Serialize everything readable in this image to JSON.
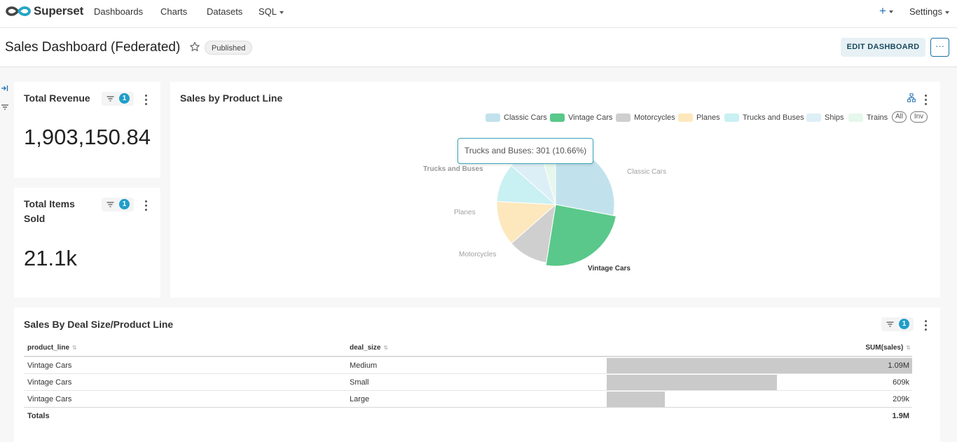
{
  "nav": {
    "brand": "Superset",
    "items": [
      "Dashboards",
      "Charts",
      "Datasets",
      "SQL"
    ],
    "plus_icon": "plus-icon",
    "settings": "Settings"
  },
  "header": {
    "title": "Sales Dashboard (Federated)",
    "status": "Published",
    "edit_label": "EDIT DASHBOARD",
    "more_label": "···"
  },
  "revenue_card": {
    "title": "Total Revenue",
    "filter_count": "1",
    "value": "1,903,150.84"
  },
  "items_card": {
    "title_line1": "Total Items",
    "title_line2": "Sold",
    "filter_count": "1",
    "value": "21.1k"
  },
  "pie_card": {
    "title": "Sales by Product Line",
    "legend_all": "All",
    "legend_inv": "Inv",
    "tooltip": "Trucks and Buses: 301 (10.66%)",
    "labels": {
      "classic": "Classic Cars",
      "vintage": "Vintage Cars",
      "motorcycles": "Motorcycles",
      "planes": "Planes",
      "trucks": "Trucks and Buses"
    }
  },
  "chart_data": {
    "type": "pie",
    "title": "Sales by Product Line",
    "legend_position": "top-right",
    "categories": [
      "Classic Cars",
      "Vintage Cars",
      "Motorcycles",
      "Planes",
      "Trucks and Buses",
      "Ships",
      "Trains"
    ],
    "colors": [
      "#c1e2ed",
      "#5ac88a",
      "#cfcfcf",
      "#fde8bd",
      "#c9f0f2",
      "#ddeff6",
      "#e6f7ec"
    ],
    "values": [
      28.0,
      24.5,
      11.0,
      12.3,
      10.66,
      9.1,
      4.4
    ],
    "highlighted": "Trucks and Buses"
  },
  "table_card": {
    "title": "Sales By Deal Size/Product Line",
    "filter_count": "1",
    "columns": [
      "product_line",
      "deal_size",
      "SUM(sales)"
    ],
    "rows": [
      {
        "product_line": "Vintage Cars",
        "deal_size": "Medium",
        "sum": "1.09M",
        "fraction": 1.0
      },
      {
        "product_line": "Vintage Cars",
        "deal_size": "Small",
        "sum": "609k",
        "fraction": 0.557
      },
      {
        "product_line": "Vintage Cars",
        "deal_size": "Large",
        "sum": "209k",
        "fraction": 0.191
      }
    ],
    "totals_label": "Totals",
    "totals_value": "1.9M"
  }
}
